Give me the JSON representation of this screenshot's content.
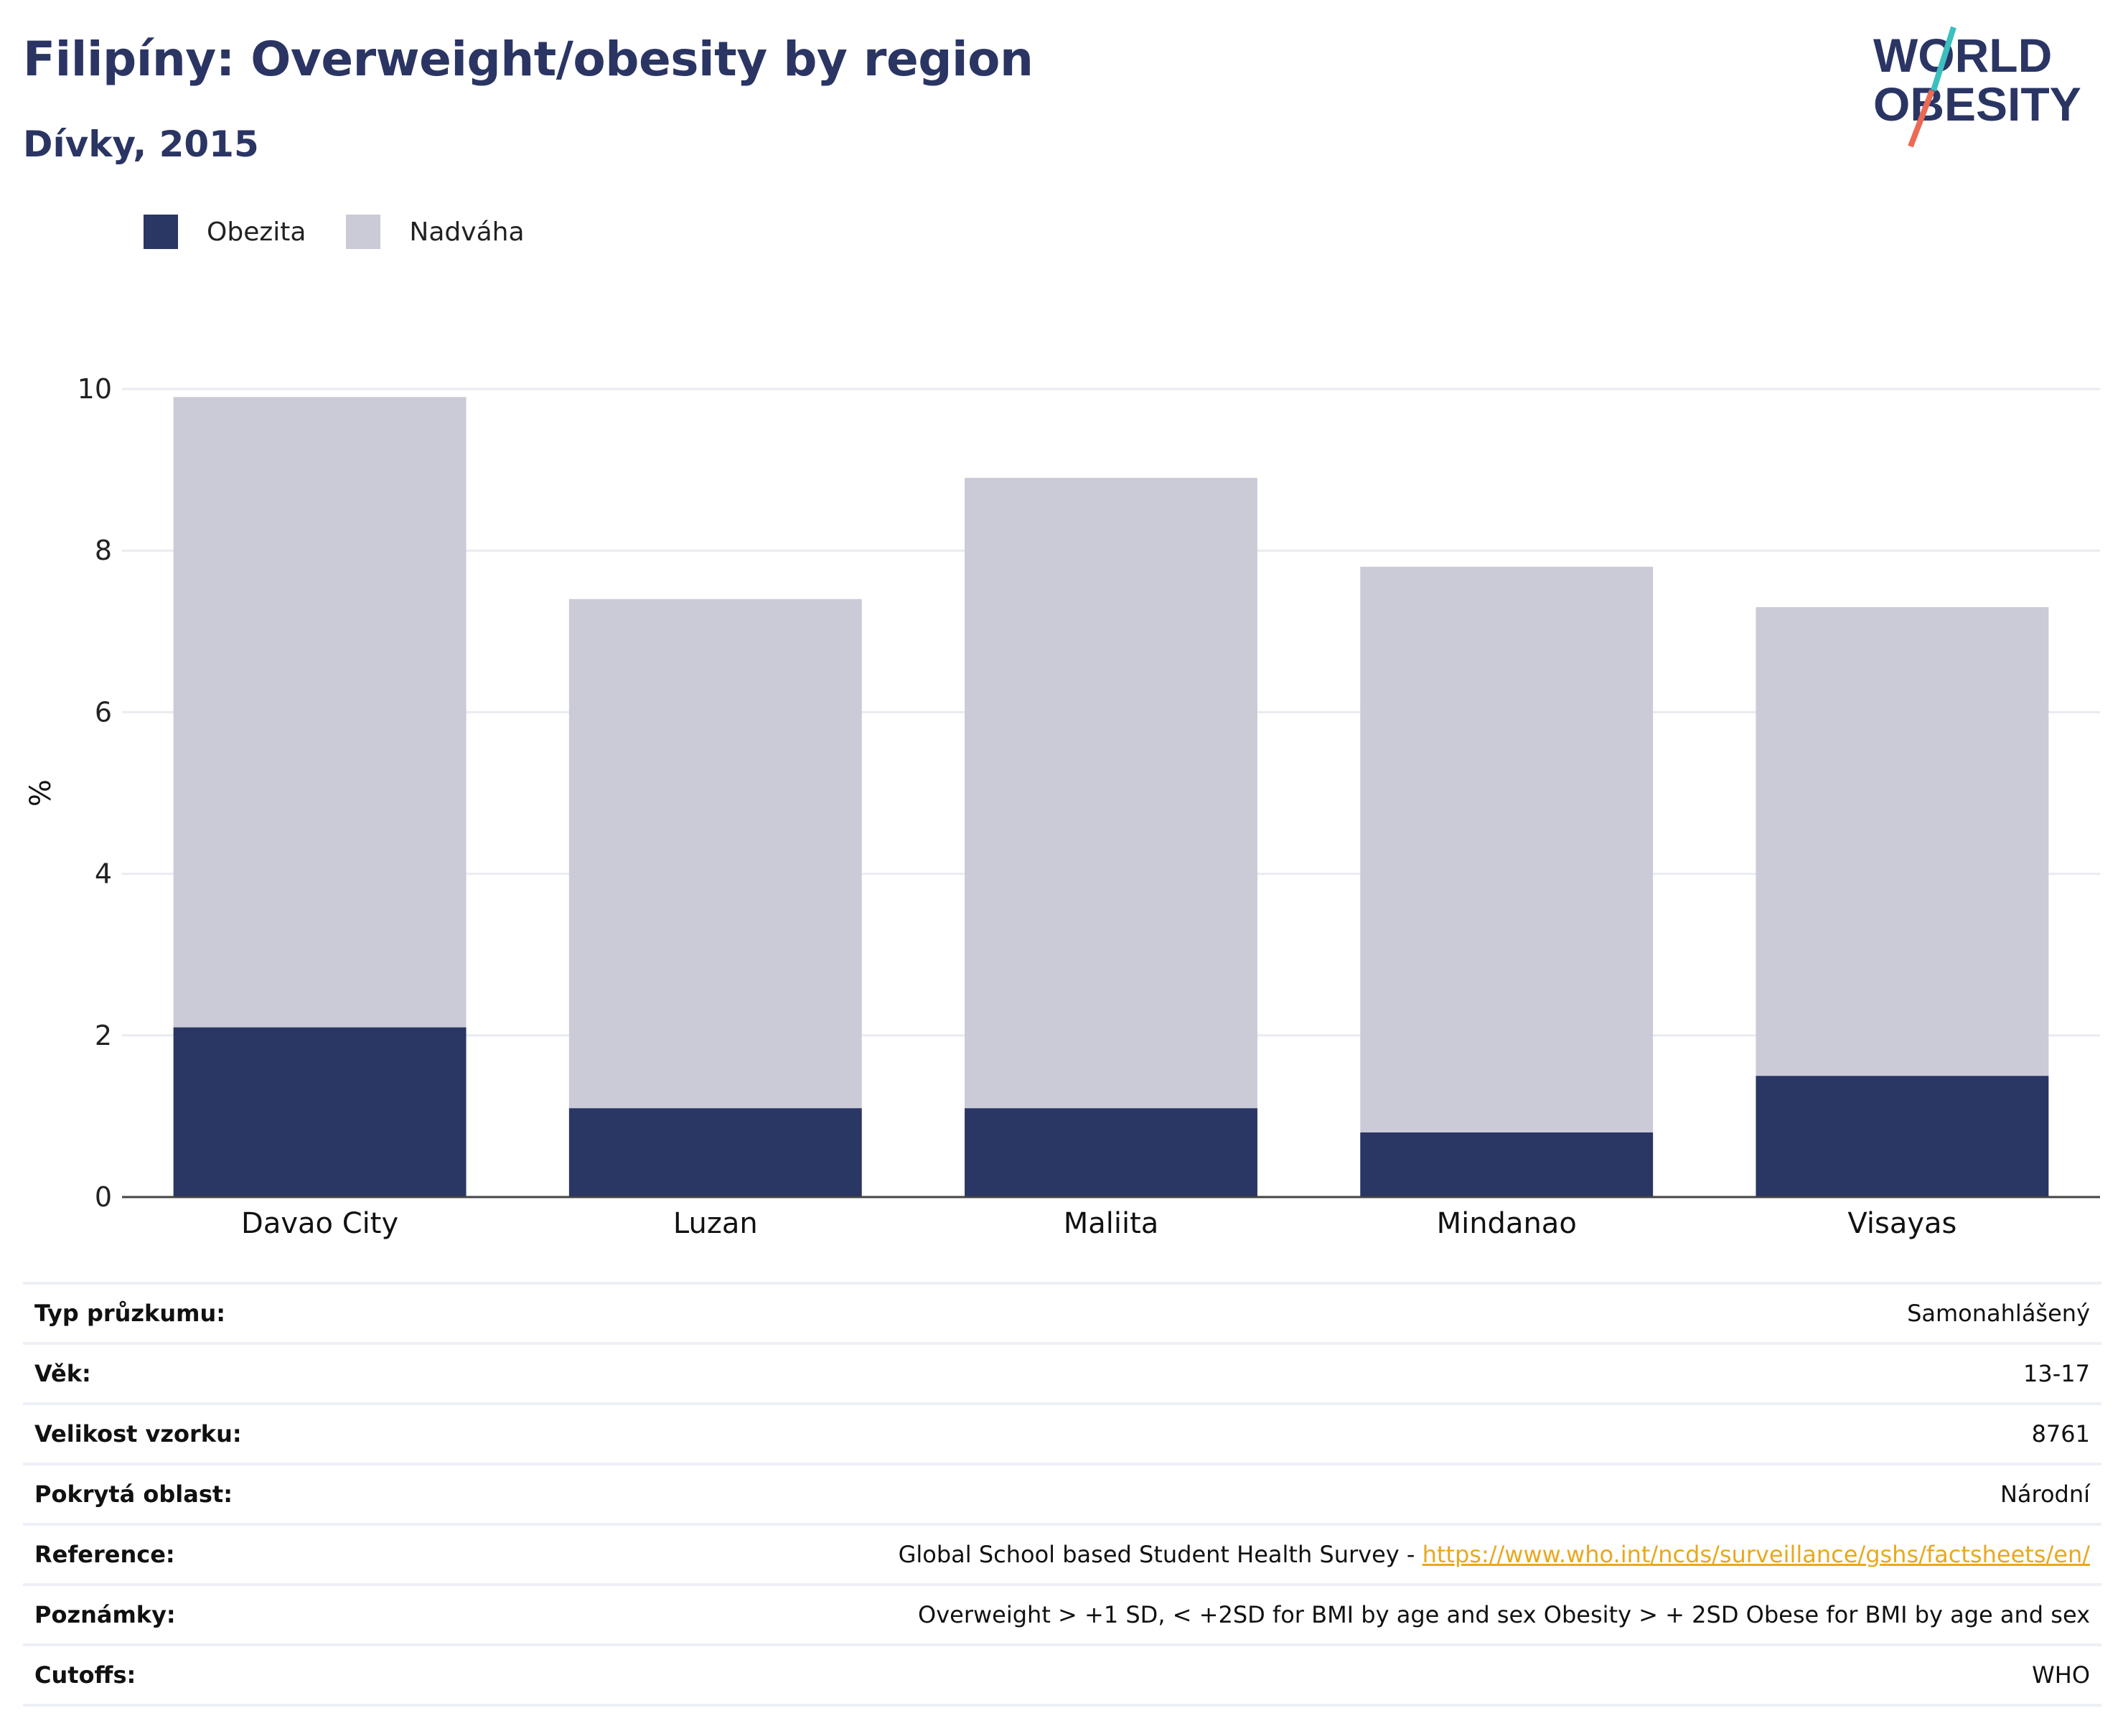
{
  "header": {
    "title": "Filipíny: Overweight/obesity by region",
    "subtitle": "Dívky, 2015"
  },
  "logo": {
    "line1": "WORLD",
    "line2": "OBESITY"
  },
  "legend": [
    {
      "label": "Obezita",
      "color": "#2a3664"
    },
    {
      "label": "Nadváha",
      "color": "#cacbd7"
    }
  ],
  "chart_data": {
    "type": "bar",
    "stacked": true,
    "categories": [
      "Davao City",
      "Luzan",
      "Maliita",
      "Mindanao",
      "Visayas"
    ],
    "series": [
      {
        "name": "Obezita",
        "values": [
          2.1,
          1.1,
          1.1,
          0.8,
          1.5
        ],
        "color": "#2a3664"
      },
      {
        "name": "Nadváha",
        "values": [
          7.8,
          6.3,
          7.8,
          7.0,
          5.8
        ],
        "color": "#cacbd7"
      }
    ],
    "ylabel": "%",
    "ylim": [
      0,
      10
    ],
    "yticks": [
      0,
      2,
      4,
      6,
      8,
      10
    ],
    "grid": true,
    "legend_position": "top-left"
  },
  "meta": {
    "rows": [
      {
        "label": "Typ průzkumu:",
        "value": "Samonahlášený"
      },
      {
        "label": "Věk:",
        "value": "13-17"
      },
      {
        "label": "Velikost vzorku:",
        "value": "8761"
      },
      {
        "label": "Pokrytá oblast:",
        "value": "Národní"
      },
      {
        "label": "Reference:",
        "value": "Global School based Student Health Survey - ",
        "link": "https://www.who.int/ncds/surveillance/gshs/factsheets/en/"
      },
      {
        "label": "Poznámky:",
        "value": "Overweight > +1 SD, < +2SD for BMI by age and sex Obesity > + 2SD Obese for BMI by age and sex"
      },
      {
        "label": "Cutoffs:",
        "value": "WHO"
      }
    ]
  }
}
